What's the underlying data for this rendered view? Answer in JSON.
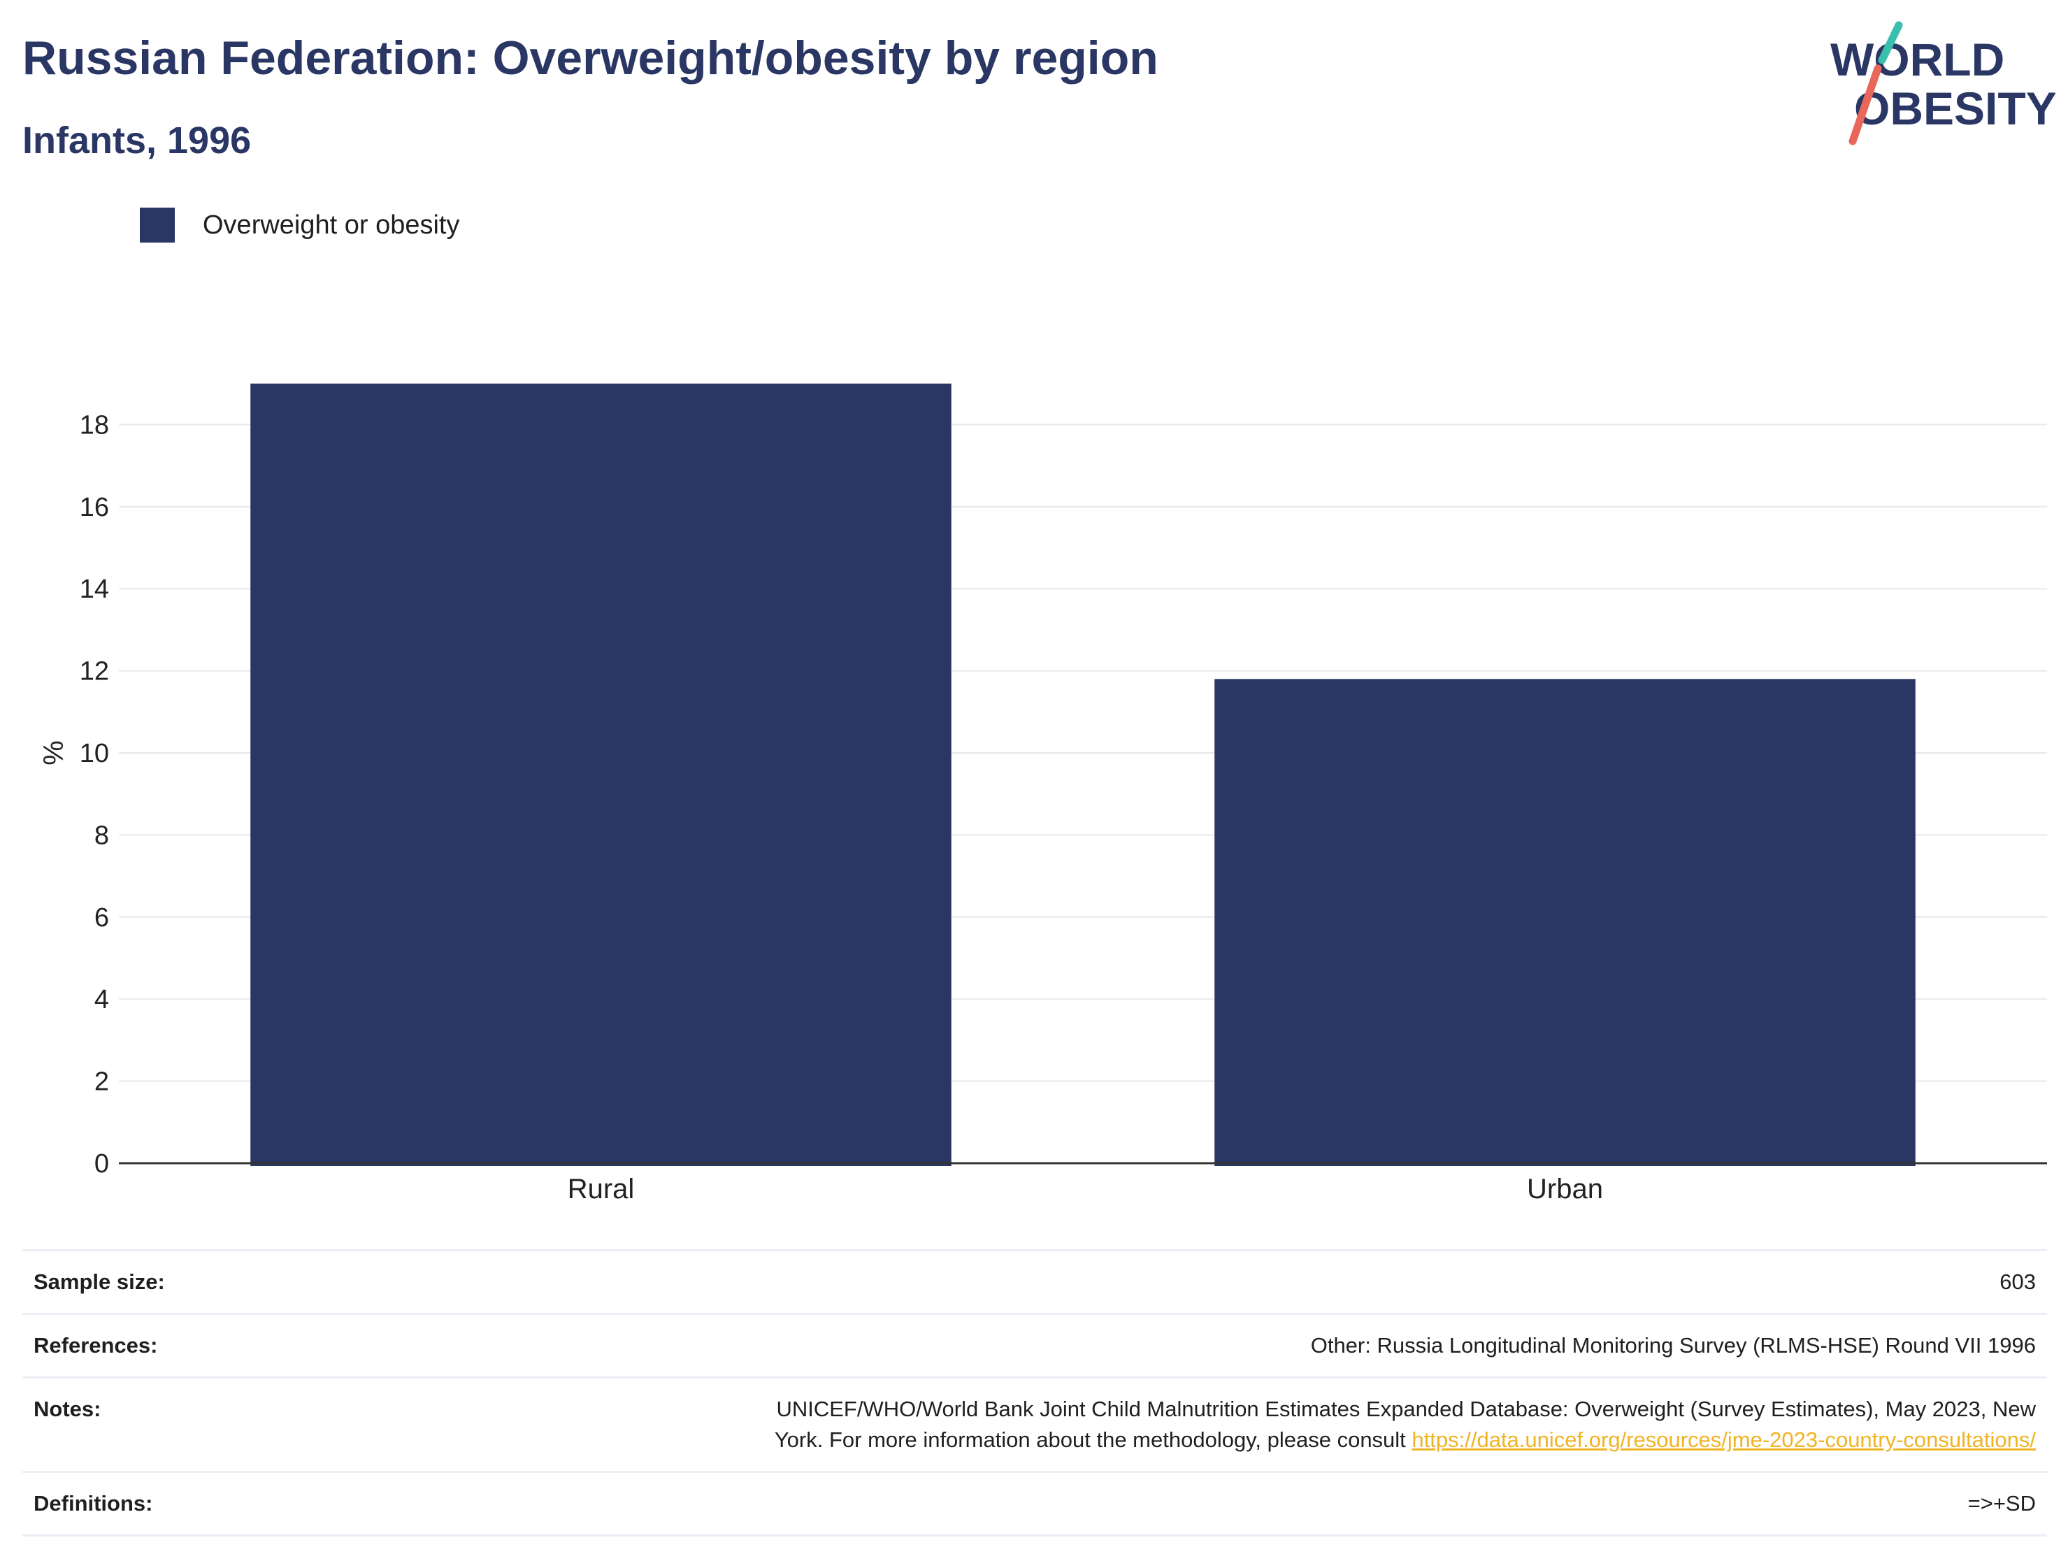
{
  "header": {
    "title": "Russian Federation: Overweight/obesity by region",
    "subtitle": "Infants, 1996"
  },
  "logo": {
    "line1": "WORLD",
    "line2": "OBESITY",
    "accent_teal": "#3bbfad",
    "accent_red": "#e8675a"
  },
  "legend": {
    "items": [
      {
        "label": "Overweight or obesity",
        "color": "#2a3663"
      }
    ]
  },
  "chart_data": {
    "type": "bar",
    "categories": [
      "Rural",
      "Urban"
    ],
    "series": [
      {
        "name": "Overweight or obesity",
        "values": [
          19.0,
          11.8
        ],
        "color": "#2a3663"
      }
    ],
    "ylabel": "%",
    "xlabel": "",
    "ylim": [
      0,
      20
    ],
    "yticks": [
      0,
      2,
      4,
      6,
      8,
      10,
      12,
      14,
      16,
      18
    ],
    "grid": true,
    "legend_position": "top-left"
  },
  "info": {
    "sample_size_label": "Sample size:",
    "sample_size_value": "603",
    "references_label": "References:",
    "references_value": "Other: Russia Longitudinal Monitoring Survey (RLMS-HSE) Round VII 1996",
    "notes_label": "Notes:",
    "notes_text_line1": "UNICEF/WHO/World Bank Joint Child Malnutrition Estimates Expanded Database: Overweight (Survey Estimates), May 2023, New",
    "notes_text_line2": "York. For more information about the methodology, please consult ",
    "notes_link": "https://data.unicef.org/resources/jme-2023-country-consultations/",
    "definitions_label": "Definitions:",
    "definitions_value": "=>+SD"
  }
}
